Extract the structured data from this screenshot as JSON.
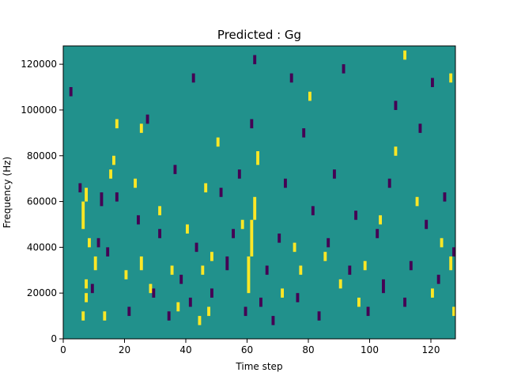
{
  "chart_data": {
    "type": "heatmap",
    "title": "Predicted : Gg",
    "xlabel": "Time step",
    "ylabel": "Frequency (Hz)",
    "xlim": [
      0,
      128
    ],
    "ylim": [
      0,
      128000
    ],
    "x_ticks": [
      0,
      20,
      40,
      60,
      80,
      100,
      120
    ],
    "y_ticks": [
      0,
      20000,
      40000,
      60000,
      80000,
      100000,
      120000
    ],
    "colormap": {
      "background": "#21918c",
      "low": "#440154",
      "high": "#fde725"
    },
    "rows": 128,
    "cols": 128,
    "y_bin_hz": 1000,
    "high_cells": [
      [
        6,
        8000,
        4
      ],
      [
        7,
        16000,
        4
      ],
      [
        7,
        22000,
        4
      ],
      [
        8,
        40000,
        4
      ],
      [
        6,
        48000,
        12
      ],
      [
        7,
        60000,
        6
      ],
      [
        13,
        8000,
        4
      ],
      [
        10,
        30000,
        6
      ],
      [
        15,
        70000,
        4
      ],
      [
        16,
        76000,
        4
      ],
      [
        17,
        92000,
        4
      ],
      [
        25,
        90000,
        4
      ],
      [
        20,
        26000,
        4
      ],
      [
        23,
        66000,
        4
      ],
      [
        25,
        30000,
        6
      ],
      [
        28,
        20000,
        4
      ],
      [
        31,
        54000,
        4
      ],
      [
        35,
        28000,
        4
      ],
      [
        37,
        12000,
        4
      ],
      [
        40,
        46000,
        4
      ],
      [
        44,
        6000,
        4
      ],
      [
        45,
        28000,
        4
      ],
      [
        46,
        64000,
        4
      ],
      [
        47,
        10000,
        4
      ],
      [
        48,
        34000,
        4
      ],
      [
        50,
        84000,
        4
      ],
      [
        58,
        48000,
        4
      ],
      [
        60,
        20000,
        16
      ],
      [
        61,
        36000,
        16
      ],
      [
        62,
        52000,
        10
      ],
      [
        63,
        76000,
        6
      ],
      [
        71,
        18000,
        4
      ],
      [
        75,
        38000,
        4
      ],
      [
        77,
        28000,
        4
      ],
      [
        80,
        104000,
        4
      ],
      [
        85,
        34000,
        4
      ],
      [
        90,
        22000,
        4
      ],
      [
        96,
        14000,
        4
      ],
      [
        98,
        30000,
        4
      ],
      [
        103,
        50000,
        4
      ],
      [
        108,
        80000,
        4
      ],
      [
        111,
        122000,
        4
      ],
      [
        115,
        58000,
        4
      ],
      [
        120,
        18000,
        4
      ],
      [
        123,
        40000,
        4
      ],
      [
        126,
        30000,
        6
      ],
      [
        127,
        10000,
        4
      ],
      [
        126,
        112000,
        4
      ]
    ],
    "low_cells": [
      [
        2,
        106000,
        4
      ],
      [
        5,
        64000,
        4
      ],
      [
        9,
        20000,
        4
      ],
      [
        11,
        40000,
        4
      ],
      [
        12,
        58000,
        6
      ],
      [
        14,
        36000,
        4
      ],
      [
        17,
        60000,
        4
      ],
      [
        21,
        10000,
        4
      ],
      [
        24,
        50000,
        4
      ],
      [
        27,
        94000,
        4
      ],
      [
        29,
        18000,
        4
      ],
      [
        31,
        44000,
        4
      ],
      [
        34,
        8000,
        4
      ],
      [
        36,
        72000,
        4
      ],
      [
        38,
        24000,
        4
      ],
      [
        41,
        14000,
        4
      ],
      [
        42,
        112000,
        4
      ],
      [
        43,
        38000,
        4
      ],
      [
        48,
        18000,
        4
      ],
      [
        51,
        62000,
        4
      ],
      [
        53,
        30000,
        6
      ],
      [
        55,
        44000,
        4
      ],
      [
        57,
        70000,
        4
      ],
      [
        59,
        10000,
        4
      ],
      [
        61,
        92000,
        4
      ],
      [
        62,
        120000,
        4
      ],
      [
        64,
        14000,
        4
      ],
      [
        66,
        28000,
        4
      ],
      [
        68,
        6000,
        4
      ],
      [
        70,
        42000,
        4
      ],
      [
        72,
        66000,
        4
      ],
      [
        74,
        112000,
        4
      ],
      [
        76,
        16000,
        4
      ],
      [
        78,
        88000,
        4
      ],
      [
        81,
        54000,
        4
      ],
      [
        83,
        8000,
        4
      ],
      [
        86,
        40000,
        4
      ],
      [
        88,
        70000,
        4
      ],
      [
        91,
        116000,
        4
      ],
      [
        93,
        28000,
        4
      ],
      [
        95,
        52000,
        4
      ],
      [
        99,
        10000,
        4
      ],
      [
        102,
        44000,
        4
      ],
      [
        104,
        20000,
        6
      ],
      [
        106,
        66000,
        4
      ],
      [
        108,
        100000,
        4
      ],
      [
        111,
        14000,
        4
      ],
      [
        113,
        30000,
        4
      ],
      [
        116,
        90000,
        4
      ],
      [
        118,
        48000,
        4
      ],
      [
        120,
        110000,
        4
      ],
      [
        122,
        24000,
        4
      ],
      [
        124,
        60000,
        4
      ],
      [
        127,
        36000,
        4
      ]
    ]
  }
}
